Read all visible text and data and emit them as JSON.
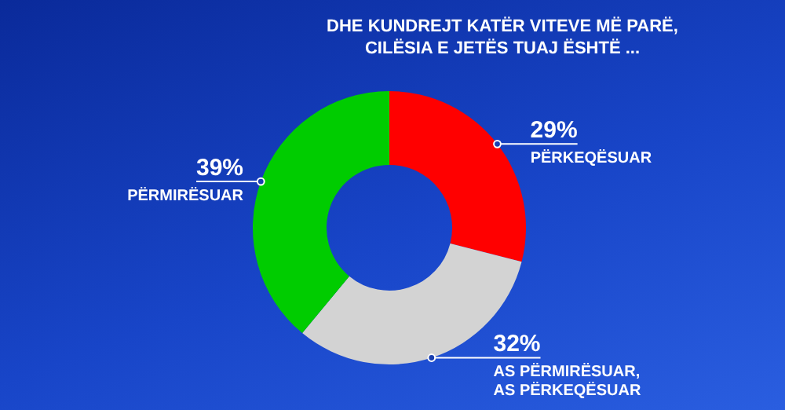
{
  "chart_data": {
    "type": "donut",
    "title": "DHE KUNDREJT KATËR VITEVE MË PARË,\nCILËSIA E JETËS TUAJ ËSHTË ...",
    "categories": [
      "PËRKEQËSUAR",
      "AS PËRMIRËSUAR, AS PËRKEQËSUAR",
      "PËRMIRËSUAR"
    ],
    "values": [
      29,
      32,
      39
    ],
    "colors": [
      "#ff0000",
      "#d3d3d3",
      "#00cc00"
    ],
    "value_labels": [
      "29%",
      "32%",
      "39%"
    ],
    "legend": false
  }
}
